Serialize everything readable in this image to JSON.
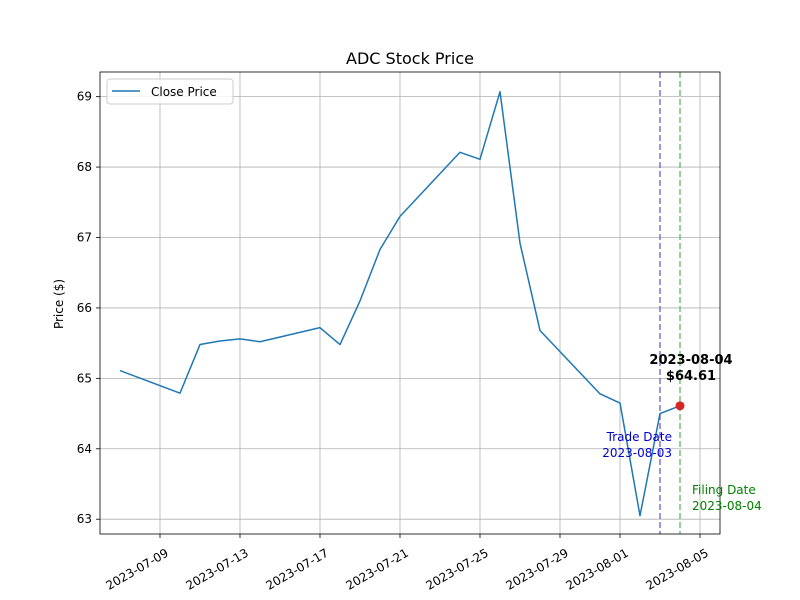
{
  "chart_data": {
    "type": "line",
    "title": "ADC Stock Price",
    "xlabel": "",
    "ylabel": "Price ($)",
    "xlim": [
      "2023-07-06",
      "2023-08-06"
    ],
    "ylim": [
      62.79,
      69.35
    ],
    "grid": true,
    "legend_position": "top-left",
    "x_ticks": [
      "2023-07-09",
      "2023-07-13",
      "2023-07-17",
      "2023-07-21",
      "2023-07-25",
      "2023-07-29",
      "2023-08-01",
      "2023-08-05"
    ],
    "y_ticks": [
      63,
      64,
      65,
      66,
      67,
      68,
      69
    ],
    "series": [
      {
        "name": "Close Price",
        "color": "#1f77b4",
        "x": [
          "2023-07-07",
          "2023-07-10",
          "2023-07-11",
          "2023-07-12",
          "2023-07-13",
          "2023-07-14",
          "2023-07-17",
          "2023-07-18",
          "2023-07-19",
          "2023-07-20",
          "2023-07-21",
          "2023-07-24",
          "2023-07-25",
          "2023-07-26",
          "2023-07-27",
          "2023-07-28",
          "2023-07-31",
          "2023-08-01",
          "2023-08-02",
          "2023-08-03",
          "2023-08-04"
        ],
        "y": [
          65.11,
          64.79,
          65.48,
          65.53,
          65.56,
          65.52,
          65.72,
          65.48,
          66.1,
          66.83,
          67.3,
          68.21,
          68.11,
          69.07,
          66.92,
          65.68,
          64.78,
          64.65,
          63.05,
          64.5,
          64.61
        ]
      }
    ],
    "vlines": [
      {
        "x": "2023-08-03",
        "color": "#6a5acd",
        "label_line1": "Trade Date",
        "label_line2": "2023-08-03",
        "label_color": "#0000cc"
      },
      {
        "x": "2023-08-04",
        "color": "#5cb85c",
        "label_line1": "Filing Date",
        "label_line2": "2023-08-04",
        "label_color": "#008000"
      }
    ],
    "highlight": {
      "x": "2023-08-04",
      "y": 64.61,
      "color": "#d62728",
      "label_line1": "2023-08-04",
      "label_line2": "$64.61"
    }
  }
}
